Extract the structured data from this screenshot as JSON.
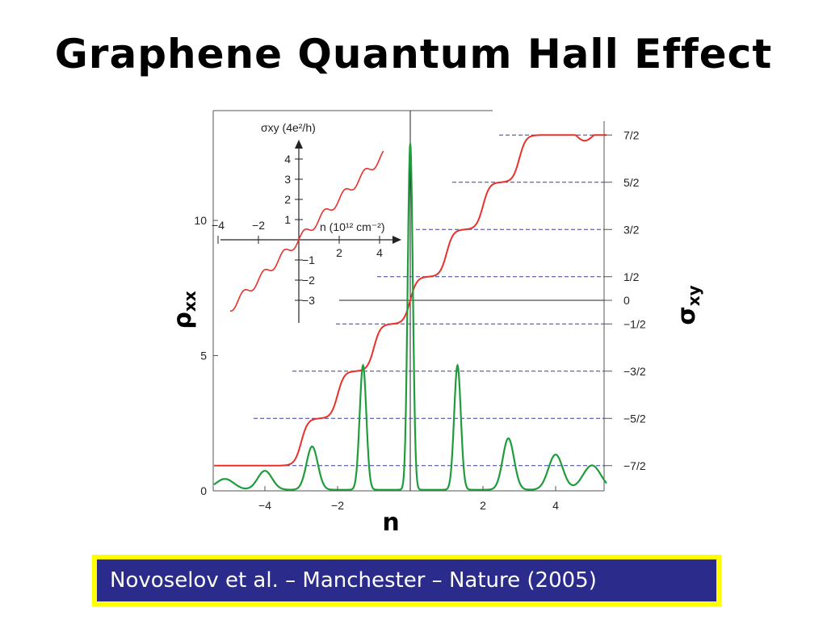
{
  "slide": {
    "title": "Graphene Quantum Hall Effect",
    "citation": "Novoselov et al. – Manchester – Nature (2005)"
  },
  "colors": {
    "rho": "#e8312a",
    "sigma": "#1f9c3c",
    "dashed": "#3a3a9a",
    "citation_bg": "#2b2b8c",
    "citation_border": "#ffff00"
  },
  "chart_data": {
    "type": "line",
    "xlabel": "n",
    "ylabel_left": "ρxx",
    "ylabel_right": "σxy",
    "xlim": [
      -5.4,
      5.4
    ],
    "ylim_left": [
      0,
      14
    ],
    "ylim_right": [
      -4.1,
      4.1
    ],
    "x_ticks": [
      "−4",
      "−2",
      "2",
      "4"
    ],
    "left_ticks": [
      "0",
      "5",
      "10"
    ],
    "right_ticks": [
      {
        "v": 3.5,
        "label": "7/2"
      },
      {
        "v": 2.5,
        "label": "5/2"
      },
      {
        "v": 1.5,
        "label": "3/2"
      },
      {
        "v": 0.5,
        "label": "1/2"
      },
      {
        "v": 0,
        "label": "0"
      },
      {
        "v": -0.5,
        "label": "−1/2"
      },
      {
        "v": -1.5,
        "label": "−3/2"
      },
      {
        "v": -2.5,
        "label": "−5/2"
      },
      {
        "v": -3.5,
        "label": "−7/2"
      }
    ],
    "series": [
      {
        "name": "σxy",
        "plateaus": [
          -3.5,
          -2.5,
          -1.5,
          -0.5,
          0.5,
          1.5,
          2.5,
          3.5
        ],
        "step_centers": [
          -3.0,
          -2.0,
          -1.0,
          0.0,
          1.0,
          2.0,
          3.0
        ]
      },
      {
        "name": "ρxx",
        "peaks": [
          {
            "x": -5.1,
            "y": 0.4
          },
          {
            "x": -4.0,
            "y": 0.7
          },
          {
            "x": -2.7,
            "y": 1.6
          },
          {
            "x": -1.3,
            "y": 4.6
          },
          {
            "x": 0.0,
            "y": 12.8
          },
          {
            "x": 1.3,
            "y": 4.6
          },
          {
            "x": 2.7,
            "y": 1.9
          },
          {
            "x": 4.0,
            "y": 1.3
          },
          {
            "x": 5.0,
            "y": 0.9
          }
        ]
      }
    ],
    "inset": {
      "xlabel": "n (10¹² cm⁻²)",
      "ylabel": "σxy (4e²/h)",
      "x_ticks_neg": [
        "−4",
        "−2"
      ],
      "x_ticks_pos": [
        "2",
        "4"
      ],
      "y_ticks_pos": [
        "1",
        "2",
        "3",
        "4"
      ],
      "y_ticks_neg": [
        "−1",
        "−2",
        "−3"
      ]
    }
  }
}
